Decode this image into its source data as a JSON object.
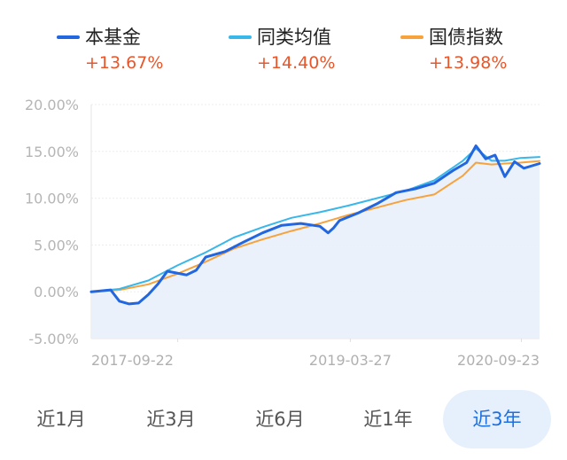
{
  "legend": [
    {
      "name": "本基金",
      "value": "+13.67%",
      "color": "#2266e0"
    },
    {
      "name": "同类均值",
      "value": "+14.40%",
      "color": "#38b7ea"
    },
    {
      "name": "国债指数",
      "value": "+13.98%",
      "color": "#f7a23a"
    }
  ],
  "tabs": [
    {
      "label": "近1月",
      "active": false
    },
    {
      "label": "近3月",
      "active": false
    },
    {
      "label": "近6月",
      "active": false
    },
    {
      "label": "近1年",
      "active": false
    },
    {
      "label": "近3年",
      "active": true
    }
  ],
  "colors": {
    "accent": "#1e6fe0",
    "positive": "#e8562a",
    "fill": "#e8effb"
  },
  "chart_data": {
    "type": "line",
    "ylim": [
      -5,
      20
    ],
    "yticks": [
      "20.00%",
      "15.00%",
      "10.00%",
      "5.00%",
      "0.00%",
      "-5.00%"
    ],
    "xticks": [
      "2017-09-22",
      "2019-03-27",
      "2020-09-23"
    ],
    "xlim": [
      "2016-12-20",
      "2020-11-20"
    ],
    "grid": true,
    "legend_position": "top",
    "series": [
      {
        "name": "本基金",
        "color": "#2266e0",
        "x": [
          "2016-12-20",
          "2017-02-20",
          "2017-03-20",
          "2017-04-20",
          "2017-05-20",
          "2017-06-20",
          "2017-07-20",
          "2017-08-20",
          "2017-09-20",
          "2017-10-20",
          "2017-11-20",
          "2017-12-20",
          "2018-02-20",
          "2018-04-20",
          "2018-06-20",
          "2018-08-20",
          "2018-10-20",
          "2018-12-20",
          "2019-01-15",
          "2019-02-01",
          "2019-02-20",
          "2019-04-20",
          "2019-06-20",
          "2019-08-20",
          "2019-10-20",
          "2019-12-20",
          "2020-02-20",
          "2020-04-01",
          "2020-05-01",
          "2020-06-01",
          "2020-07-01",
          "2020-08-01",
          "2020-09-01",
          "2020-10-01",
          "2020-11-20"
        ],
        "values": [
          0.0,
          0.2,
          -1.0,
          -1.3,
          -1.2,
          -0.3,
          0.8,
          2.2,
          2.0,
          1.8,
          2.3,
          3.7,
          4.3,
          5.3,
          6.3,
          7.1,
          7.3,
          7.0,
          6.3,
          6.8,
          7.6,
          8.4,
          9.4,
          10.6,
          11.0,
          11.6,
          13.0,
          13.8,
          15.6,
          14.2,
          14.6,
          12.3,
          13.9,
          13.2,
          13.7
        ]
      },
      {
        "name": "同类均值",
        "color": "#38b7ea",
        "x": [
          "2016-12-20",
          "2017-03-20",
          "2017-06-20",
          "2017-09-20",
          "2017-12-20",
          "2018-03-20",
          "2018-06-20",
          "2018-09-20",
          "2018-12-20",
          "2019-03-20",
          "2019-06-20",
          "2019-09-20",
          "2019-12-20",
          "2020-03-20",
          "2020-05-01",
          "2020-06-20",
          "2020-08-01",
          "2020-09-20",
          "2020-11-20"
        ],
        "values": [
          0.0,
          0.3,
          1.2,
          2.8,
          4.2,
          5.8,
          6.9,
          7.9,
          8.5,
          9.2,
          10.0,
          10.8,
          11.9,
          14.0,
          15.3,
          14.0,
          14.0,
          14.3,
          14.4
        ]
      },
      {
        "name": "国债指数",
        "color": "#f7a23a",
        "x": [
          "2016-12-20",
          "2017-03-20",
          "2017-06-20",
          "2017-09-20",
          "2017-12-20",
          "2018-03-20",
          "2018-06-20",
          "2018-09-20",
          "2018-12-20",
          "2019-03-20",
          "2019-06-20",
          "2019-09-20",
          "2019-12-20",
          "2020-03-20",
          "2020-05-01",
          "2020-06-20",
          "2020-08-01",
          "2020-09-20",
          "2020-11-20"
        ],
        "values": [
          0.0,
          0.2,
          0.8,
          1.9,
          3.2,
          4.6,
          5.6,
          6.5,
          7.3,
          8.2,
          9.0,
          9.8,
          10.4,
          12.4,
          13.8,
          13.6,
          13.7,
          13.8,
          13.98
        ]
      }
    ]
  }
}
